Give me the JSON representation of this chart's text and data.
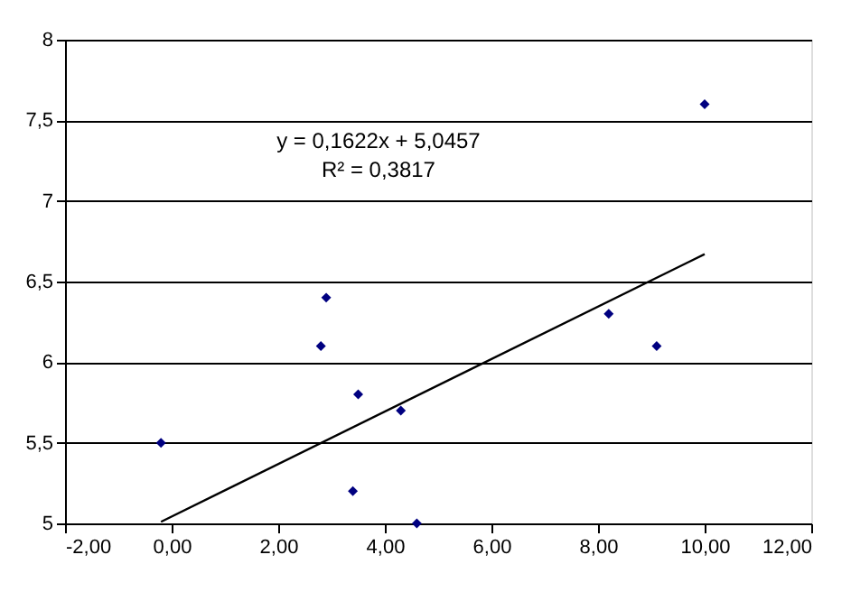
{
  "chart_data": {
    "type": "scatter",
    "series": [
      {
        "color": "#000080",
        "marker": "diamond",
        "x": [
          -0.2,
          2.8,
          2.9,
          3.5,
          3.4,
          4.3,
          4.6,
          8.2,
          9.1,
          10.0
        ],
        "values": [
          5.5,
          6.1,
          6.4,
          5.8,
          5.2,
          5.7,
          5.0,
          6.3,
          6.1,
          7.6
        ]
      },
      {
        "type": "line",
        "color": "#000000",
        "x": [
          -0.2,
          10.0
        ],
        "values": [
          5.01,
          6.67
        ],
        "line_style": "solid"
      }
    ],
    "xlim": [
      -2,
      12
    ],
    "ylim": [
      5,
      8
    ],
    "xticks": [
      {
        "value": -2,
        "label": "-2,00"
      },
      {
        "value": 0,
        "label": "0,00"
      },
      {
        "value": 2,
        "label": "2,00"
      },
      {
        "value": 4,
        "label": "4,00"
      },
      {
        "value": 6,
        "label": "6,00"
      },
      {
        "value": 8,
        "label": "8,00"
      },
      {
        "value": 10,
        "label": "10,00"
      },
      {
        "value": 12,
        "label": "12,00"
      }
    ],
    "yticks": [
      5,
      {
        "value": 5.5,
        "label": "5,5"
      },
      6,
      {
        "value": 6.5,
        "label": "6,5"
      },
      7,
      {
        "value": 7.5,
        "label": "7,5"
      },
      8
    ],
    "grid": "y",
    "annotations": [
      "y = 0,1622x + 5,0457",
      "R² = 0,3817"
    ]
  }
}
